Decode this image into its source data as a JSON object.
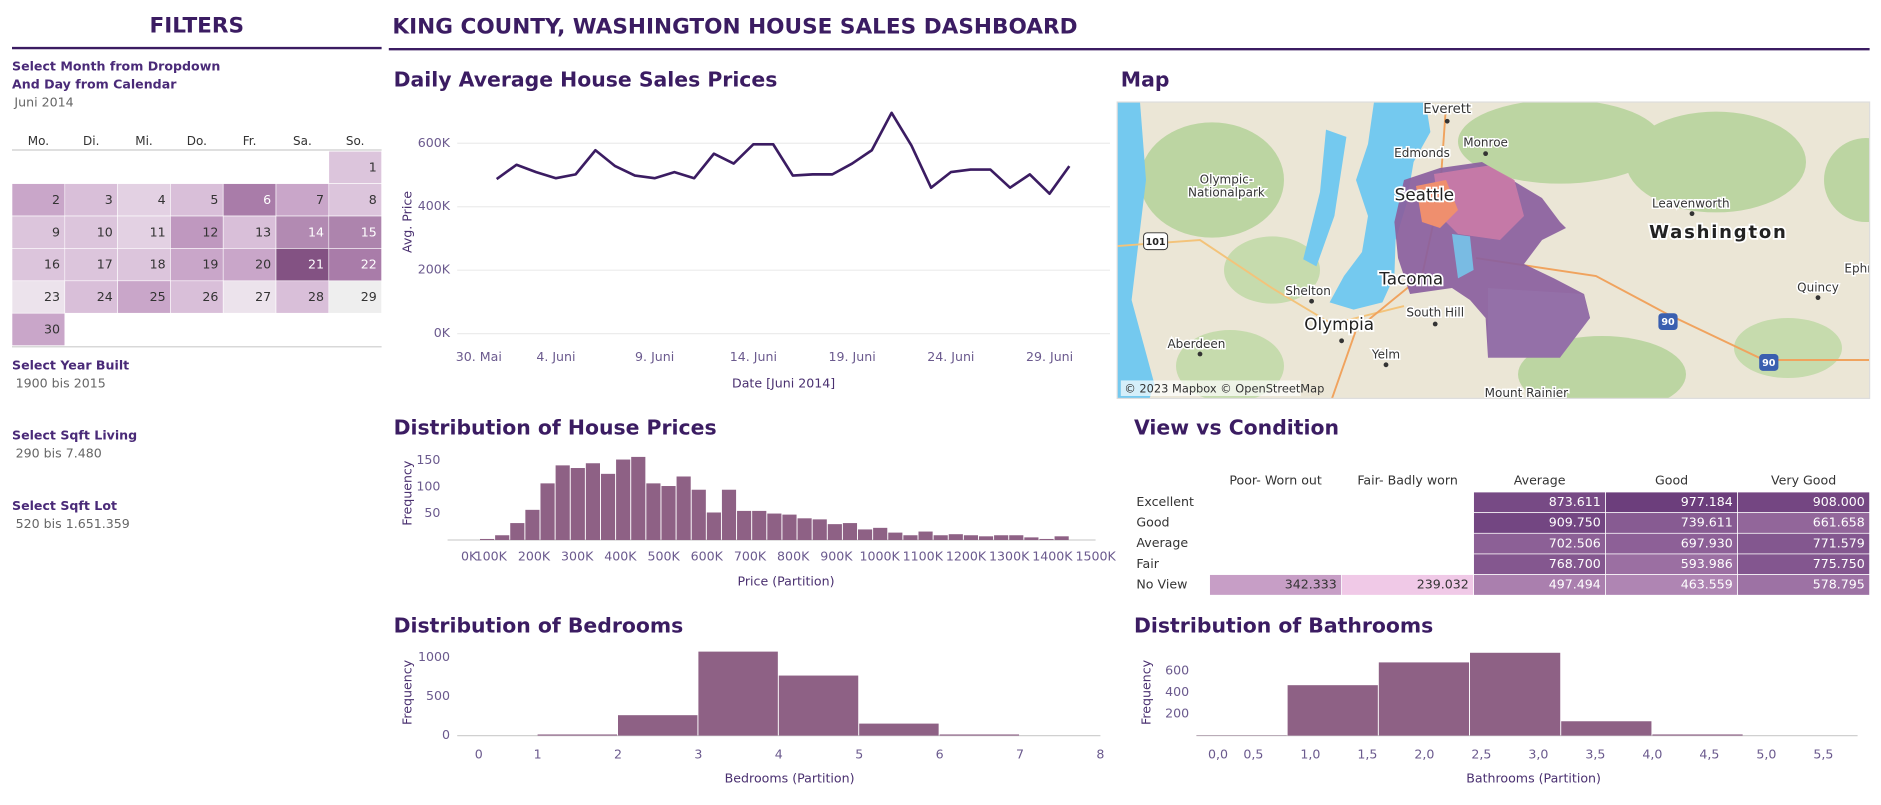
{
  "title": "KING COUNTY, WASHINGTON HOUSE SALES DASHBOARD",
  "filters": {
    "title": "FILTERS",
    "instructions": [
      "Select Month from Dropdown",
      "And Day from Calendar"
    ],
    "month": "Juni 2014",
    "weekdays": [
      "Mo.",
      "Di.",
      "Mi.",
      "Do.",
      "Fr.",
      "Sa.",
      "So."
    ],
    "weeks": [
      [
        null,
        null,
        null,
        null,
        null,
        null,
        1
      ],
      [
        2,
        3,
        4,
        5,
        6,
        7,
        8
      ],
      [
        9,
        10,
        11,
        12,
        13,
        14,
        15
      ],
      [
        16,
        17,
        18,
        19,
        20,
        21,
        22
      ],
      [
        23,
        24,
        25,
        26,
        27,
        28,
        29
      ],
      [
        30,
        null,
        null,
        null,
        null,
        null,
        null
      ]
    ],
    "week_colors": [
      [
        null,
        null,
        null,
        null,
        null,
        null,
        "#dcc5dc"
      ],
      [
        "#c9a6c9",
        "#d9bfd9",
        "#e3d1e3",
        "#d9bfd9",
        "#a97ca9",
        "#c9a6c9",
        "#dcc5dc"
      ],
      [
        "#dcc5dc",
        "#dcc5dc",
        "#e3d1e3",
        "#bf98bf",
        "#d9bfd9",
        "#b28ab2",
        "#ad84ad"
      ],
      [
        "#dcc5dc",
        "#dcc5dc",
        "#dcc5dc",
        "#c9a6c9",
        "#c9a6c9",
        "#835283",
        "#a97ca9"
      ],
      [
        "#ece3ec",
        "#d9bfd9",
        "#c9a6c9",
        "#d9bfd9",
        "#ece3ec",
        "#d9bfd9",
        "#eeeeee"
      ],
      [
        "#c9a6c9",
        null,
        null,
        null,
        null,
        null,
        null
      ]
    ],
    "ranges": [
      {
        "label": "Select Year Built",
        "value": "1900 bis 2015"
      },
      {
        "label": "Select Sqft Living",
        "value": "290 bis 7.480"
      },
      {
        "label": "Select Sqft Lot",
        "value": "520 bis 1.651.359"
      }
    ]
  },
  "chart_data": [
    {
      "type": "line",
      "title": "Daily Average House Sales Prices",
      "xlabel": "Date [Juni 2014]",
      "ylabel": "Avg. Price",
      "color": "#3b1c62",
      "grid": true,
      "x": [
        "2014-06-01",
        "2014-06-02",
        "2014-06-03",
        "2014-06-04",
        "2014-06-05",
        "2014-06-06",
        "2014-06-07",
        "2014-06-08",
        "2014-06-09",
        "2014-06-10",
        "2014-06-11",
        "2014-06-12",
        "2014-06-13",
        "2014-06-14",
        "2014-06-15",
        "2014-06-16",
        "2014-06-17",
        "2014-06-18",
        "2014-06-19",
        "2014-06-20",
        "2014-06-21",
        "2014-06-22",
        "2014-06-23",
        "2014-06-24",
        "2014-06-25",
        "2014-06-26",
        "2014-06-27",
        "2014-06-28",
        "2014-06-29",
        "2014-06-30"
      ],
      "values": [
        487000,
        532000,
        509000,
        490000,
        502000,
        578000,
        528000,
        498000,
        490000,
        509000,
        490000,
        567000,
        536000,
        597000,
        597000,
        498000,
        502000,
        502000,
        536000,
        578000,
        696000,
        593000,
        460000,
        509000,
        517000,
        517000,
        460000,
        502000,
        441000,
        528000
      ],
      "xlim": [
        "2014-05-30",
        "2014-07-02"
      ],
      "xticks": [
        {
          "value": "2014-05-30",
          "label": "30. Mai"
        },
        {
          "value": "2014-06-04",
          "label": "4. Juni"
        },
        {
          "value": "2014-06-09",
          "label": "9. Juni"
        },
        {
          "value": "2014-06-14",
          "label": "14. Juni"
        },
        {
          "value": "2014-06-19",
          "label": "19. Juni"
        },
        {
          "value": "2014-06-24",
          "label": "24. Juni"
        },
        {
          "value": "2014-06-29",
          "label": "29. Juni"
        }
      ],
      "ylim": [
        0,
        730000
      ],
      "yticks": [
        {
          "value": 0,
          "label": "0K"
        },
        {
          "value": 200000,
          "label": "200K"
        },
        {
          "value": 400000,
          "label": "400K"
        },
        {
          "value": 600000,
          "label": "600K"
        }
      ]
    },
    {
      "type": "histogram",
      "title": "Distribution of House Prices",
      "xlabel": "Price (Partition)",
      "ylabel": "Frequency",
      "color": "#8e6185",
      "grid": false,
      "bins": [
        75000,
        110000,
        145000,
        180000,
        215000,
        250000,
        285000,
        320000,
        355000,
        390000,
        425000,
        460000,
        495000,
        530000,
        565000,
        600000,
        635000,
        670000,
        705000,
        740000,
        775000,
        810000,
        845000,
        880000,
        915000,
        950000,
        985000,
        1020000,
        1055000,
        1090000,
        1125000,
        1160000,
        1195000,
        1230000,
        1265000,
        1300000,
        1335000,
        1370000,
        1405000,
        1440000
      ],
      "values": [
        2,
        9,
        32,
        57,
        107,
        141,
        136,
        145,
        125,
        152,
        157,
        107,
        102,
        120,
        95,
        52,
        95,
        55,
        55,
        50,
        48,
        41,
        39,
        30,
        32,
        20,
        23,
        14,
        9,
        16,
        9,
        11,
        9,
        7,
        9,
        9,
        5,
        2,
        7
      ],
      "xlim": [
        0,
        1500000
      ],
      "xticks": [
        {
          "value": 0,
          "label": "0K"
        },
        {
          "value": 100000,
          "label": "100K"
        },
        {
          "value": 200000,
          "label": "200K"
        },
        {
          "value": 300000,
          "label": "300K"
        },
        {
          "value": 400000,
          "label": "400K"
        },
        {
          "value": 500000,
          "label": "500K"
        },
        {
          "value": 600000,
          "label": "600K"
        },
        {
          "value": 700000,
          "label": "700K"
        },
        {
          "value": 800000,
          "label": "800K"
        },
        {
          "value": 900000,
          "label": "900K"
        },
        {
          "value": 1000000,
          "label": "1000K"
        },
        {
          "value": 1100000,
          "label": "1100K"
        },
        {
          "value": 1200000,
          "label": "1200K"
        },
        {
          "value": 1300000,
          "label": "1300K"
        },
        {
          "value": 1400000,
          "label": "1400K"
        },
        {
          "value": 1500000,
          "label": "1500K"
        }
      ],
      "ylim": [
        0,
        170
      ],
      "yticks": [
        50,
        100,
        150
      ]
    },
    {
      "type": "histogram",
      "title": "Distribution of Bedrooms",
      "xlabel": "Bedrooms (Partition)",
      "ylabel": "Frequency",
      "color": "#8e6185",
      "grid": false,
      "bins": [
        1,
        2,
        3,
        4,
        5,
        6,
        7
      ],
      "values": [
        15,
        262,
        1077,
        770,
        154,
        15
      ],
      "xlim": [
        0,
        8
      ],
      "xticks": [
        0,
        1,
        2,
        3,
        4,
        5,
        6,
        7,
        8
      ],
      "ylim": [
        0,
        1100
      ],
      "yticks": [
        0,
        500,
        1000
      ]
    },
    {
      "type": "histogram",
      "title": "Distribution of Bathrooms",
      "xlabel": "Bathrooms (Partition)",
      "ylabel": "Frequency",
      "color": "#8e6185",
      "grid": false,
      "bins": [
        0,
        0.8,
        1.6,
        2.4,
        3.2,
        4,
        4.8
      ],
      "values": [
        3,
        467,
        678,
        767,
        133,
        11
      ],
      "xlim": [
        0,
        5.8
      ],
      "xticks": [
        {
          "value": 0,
          "label": "0,0"
        },
        {
          "value": 0.5,
          "label": "0,5"
        },
        {
          "value": 1,
          "label": "1,0"
        },
        {
          "value": 1.5,
          "label": "1,5"
        },
        {
          "value": 2,
          "label": "2,0"
        },
        {
          "value": 2.5,
          "label": "2,5"
        },
        {
          "value": 3,
          "label": "3,0"
        },
        {
          "value": 3.5,
          "label": "3,5"
        },
        {
          "value": 4,
          "label": "4,0"
        },
        {
          "value": 4.5,
          "label": "4,5"
        },
        {
          "value": 5,
          "label": "5,0"
        },
        {
          "value": 5.5,
          "label": "5,5"
        }
      ],
      "ylim": [
        0,
        800
      ],
      "yticks": [
        200,
        400,
        600
      ]
    }
  ],
  "heatmap": {
    "title": "View vs Condition",
    "columns": [
      "Poor- Worn out",
      "Fair- Badly worn",
      "Average",
      "Good",
      "Very Good"
    ],
    "rows": [
      {
        "label": "Excellent",
        "values": [
          null,
          null,
          "873.611",
          "977.184",
          "908.000"
        ]
      },
      {
        "label": "Good",
        "values": [
          null,
          null,
          "909.750",
          "739.611",
          "661.658"
        ]
      },
      {
        "label": "Average",
        "values": [
          null,
          null,
          "702.506",
          "697.930",
          "771.579"
        ]
      },
      {
        "label": "Fair",
        "values": [
          null,
          null,
          "768.700",
          "593.986",
          "775.750"
        ]
      },
      {
        "label": "No View",
        "values": [
          "342.333",
          "239.032",
          "497.494",
          "463.559",
          "578.795"
        ]
      }
    ]
  },
  "map": {
    "title": "Map",
    "labels": [
      "Everett",
      "Monroe",
      "Edmonds",
      "Olympic-",
      "Nationalpark",
      "Seattle",
      "Leavenworth",
      "Washington",
      "Ephr",
      "Shelton",
      "Tacoma",
      "Quincy",
      "Olympia",
      "South Hill",
      "Aberdeen",
      "Yelm",
      "Mount Rainier"
    ],
    "shields": [
      "101",
      "90",
      "90"
    ],
    "attribution": "© 2023 Mapbox © OpenStreetMap"
  }
}
